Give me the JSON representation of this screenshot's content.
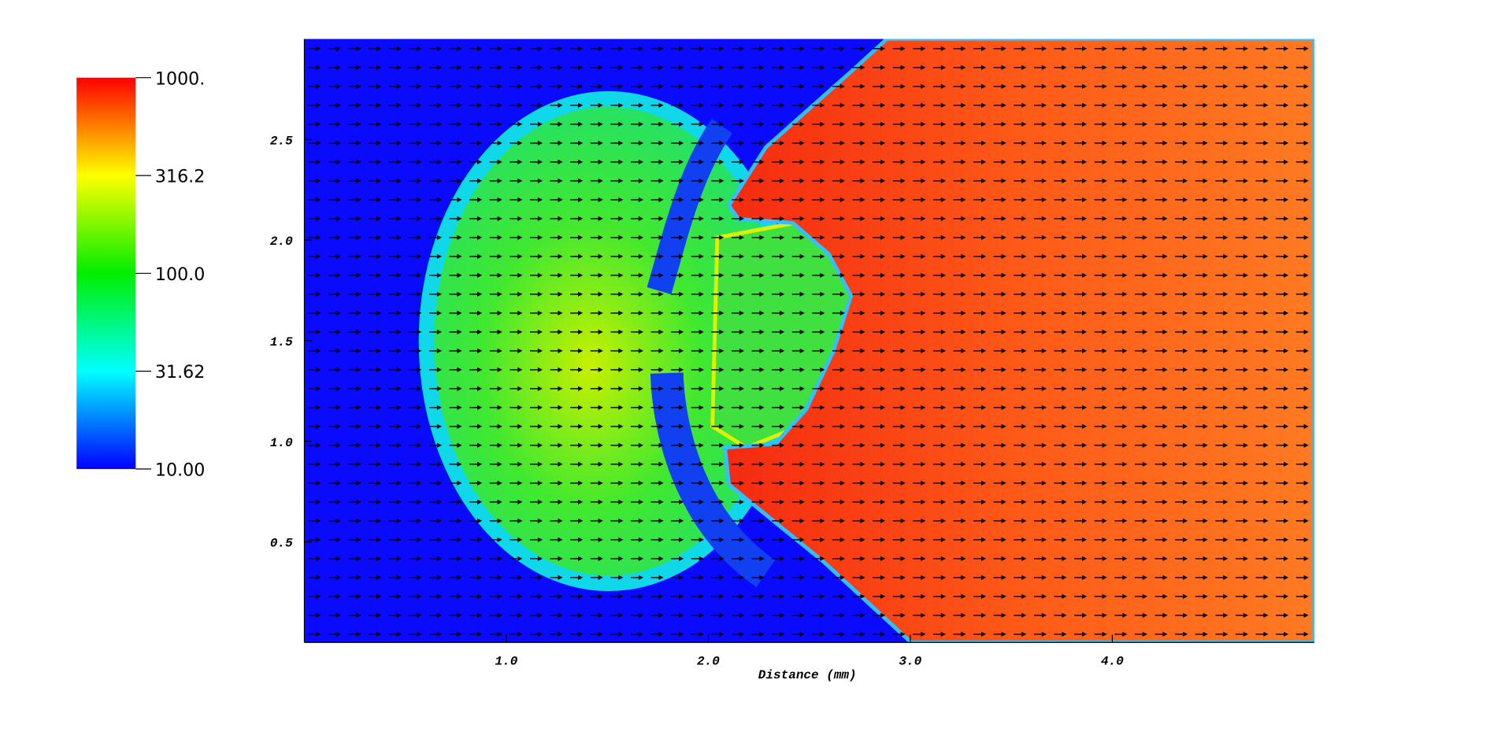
{
  "chart_data": {
    "type": "vector-field",
    "x_label": "Distance (mm)",
    "xlim": [
      0,
      5
    ],
    "xticks": [
      {
        "value": 1,
        "label": "1.0"
      },
      {
        "value": 2,
        "label": "2.0"
      },
      {
        "value": 3,
        "label": "3.0"
      },
      {
        "value": 4,
        "label": "4.0"
      }
    ],
    "ylim": [
      0,
      3
    ],
    "yticks": [
      0.5,
      {
        "value": 1,
        "label": "1.0"
      },
      1.5,
      {
        "value": 2,
        "label": "2.0"
      },
      2.5
    ],
    "colorbar": {
      "scale": "log",
      "lim": [
        10,
        1000
      ],
      "ticks": [
        {
          "value": 10,
          "label": "10.00"
        },
        31.62,
        {
          "value": 100,
          "label": "100.0"
        },
        316.2,
        {
          "value": 1000,
          "label": "1000."
        }
      ],
      "colors": [
        "#0000ff",
        "#00ffff",
        "#00ee00",
        "#ffff00",
        "#ff0000"
      ]
    }
  }
}
